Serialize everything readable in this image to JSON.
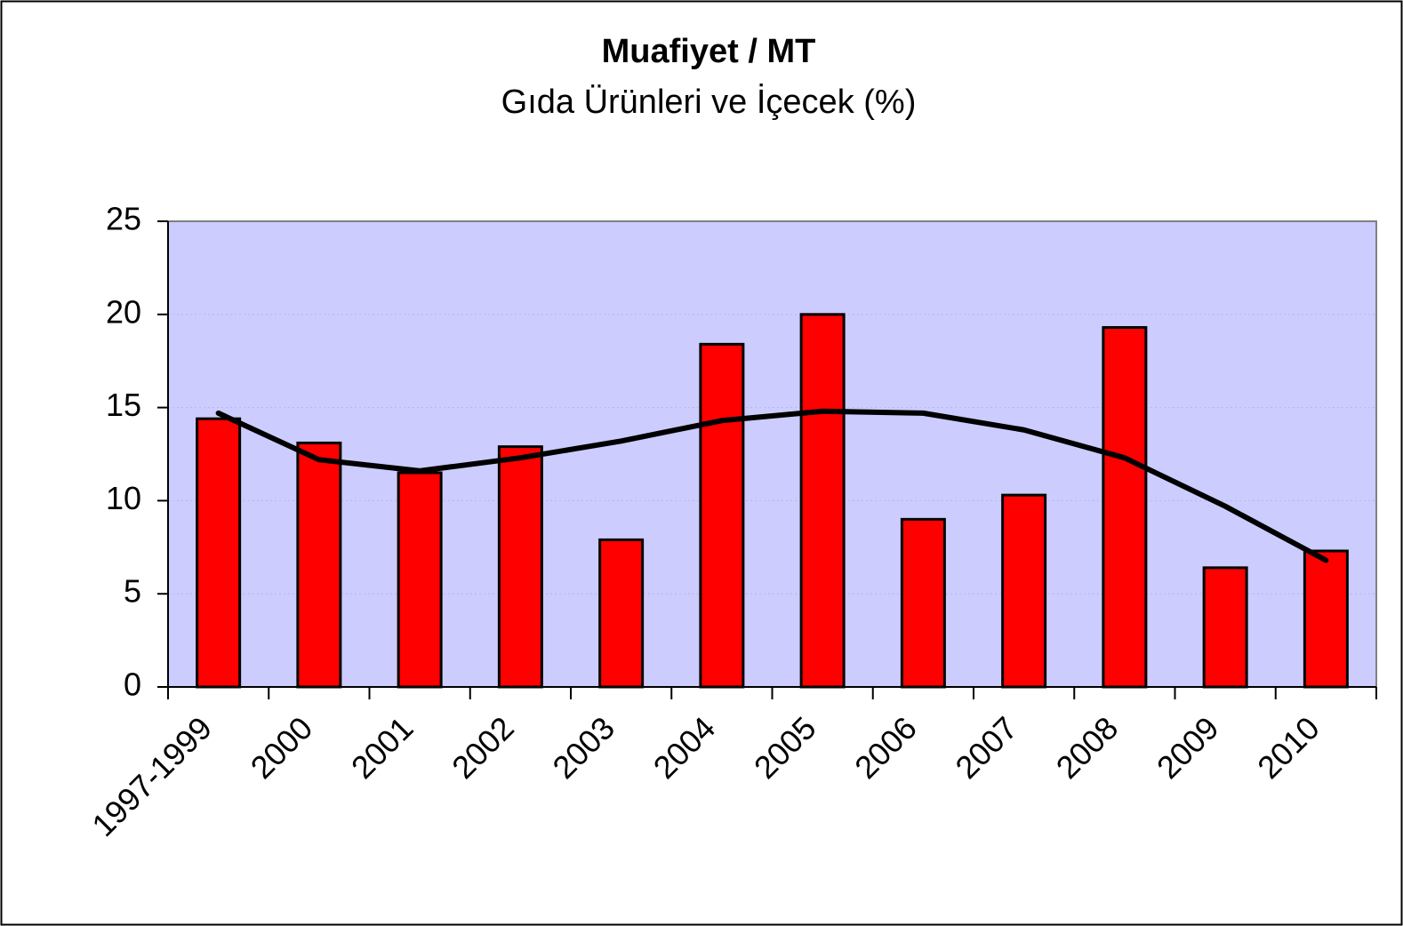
{
  "chart_data": {
    "type": "bar",
    "title": "Muafiyet / MT",
    "subtitle": "Gıda Ürünleri ve İçecek (%)",
    "categories": [
      "1997-1999",
      "2000",
      "2001",
      "2002",
      "2003",
      "2004",
      "2005",
      "2006",
      "2007",
      "2008",
      "2009",
      "2010"
    ],
    "series": [
      {
        "type": "bar",
        "color": "#ff0000",
        "values": [
          14.4,
          13.1,
          11.5,
          12.9,
          7.9,
          18.4,
          20.0,
          9.0,
          10.3,
          19.3,
          6.4,
          7.3
        ]
      },
      {
        "type": "line",
        "color": "#000000",
        "values": [
          14.7,
          12.2,
          11.6,
          12.3,
          13.2,
          14.3,
          14.8,
          14.7,
          13.8,
          12.3,
          9.7,
          6.8
        ]
      }
    ],
    "ylim": [
      0,
      25
    ],
    "yticks": [
      0,
      5,
      10,
      15,
      20,
      25
    ],
    "grid": true,
    "background": "#ccccff"
  }
}
